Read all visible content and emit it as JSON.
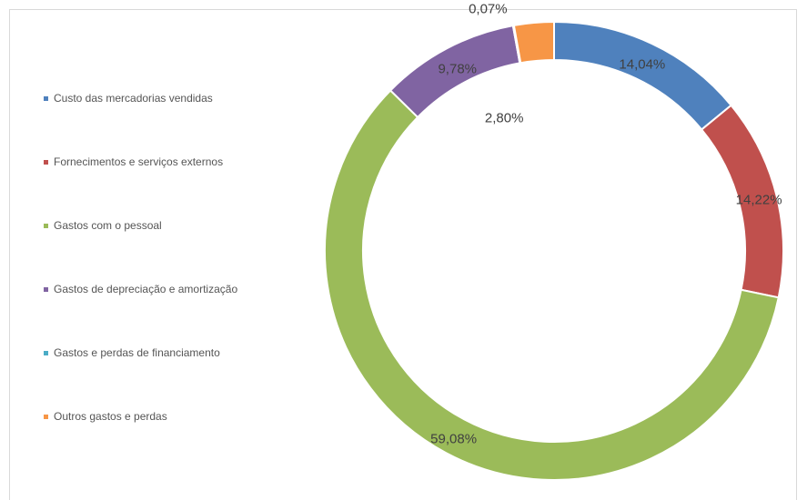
{
  "chart_data": {
    "type": "pie",
    "title": "",
    "categories": [
      "Custo das mercadorias vendidas",
      "Fornecimentos e serviços externos",
      "Gastos com o pessoal",
      "Gastos de depreciação e amortização",
      "Gastos e perdas de financiamento",
      "Outros gastos e perdas"
    ],
    "values": [
      14.04,
      14.22,
      59.08,
      9.78,
      0.07,
      2.8
    ],
    "labels": [
      "14,04%",
      "14,22%",
      "59,08%",
      "9,78%",
      "0,07%",
      "2,80%"
    ],
    "colors": [
      "#4f81bd",
      "#c0504d",
      "#9bbb59",
      "#8064a2",
      "#4bacc6",
      "#f79646"
    ],
    "legend_position": "left",
    "style": "doughnut"
  }
}
